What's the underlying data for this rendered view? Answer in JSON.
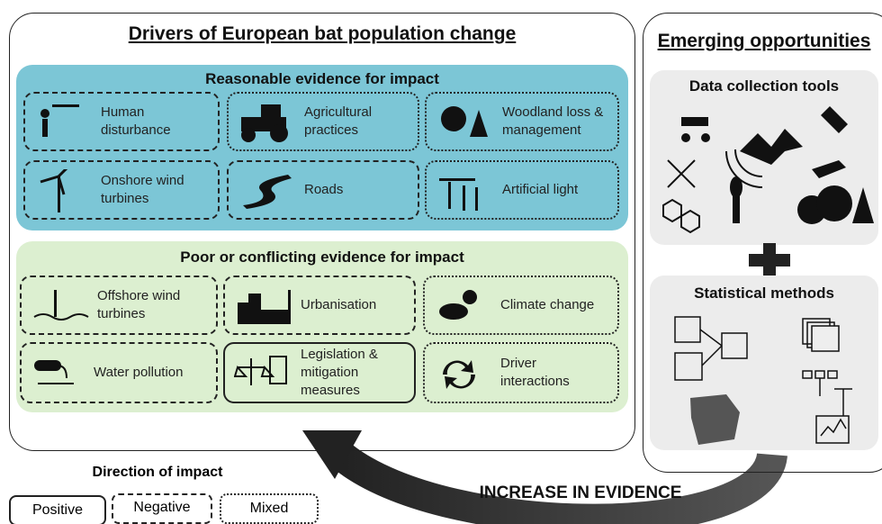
{
  "title": "Drivers of European bat population change",
  "reasonable": {
    "heading": "Reasonable evidence for impact",
    "items": [
      "Human disturbance",
      "Agricultural practices",
      "Woodland loss & management",
      "Onshore wind turbines",
      "Roads",
      "Artificial light"
    ]
  },
  "poor": {
    "heading": "Poor or conflicting evidence for impact",
    "items": [
      "Offshore wind turbines",
      "Urbanisation",
      "Climate change",
      "Water pollution",
      "Legislation & mitigation measures",
      "Driver interactions"
    ]
  },
  "opportunities": {
    "title": "Emerging opportunities",
    "data_tools": "Data collection tools",
    "stats": "Statistical methods"
  },
  "legend": {
    "title": "Direction of impact",
    "items": [
      "Positive",
      "Negative",
      "Mixed"
    ]
  },
  "arrow": "INCREASE IN EVIDENCE"
}
